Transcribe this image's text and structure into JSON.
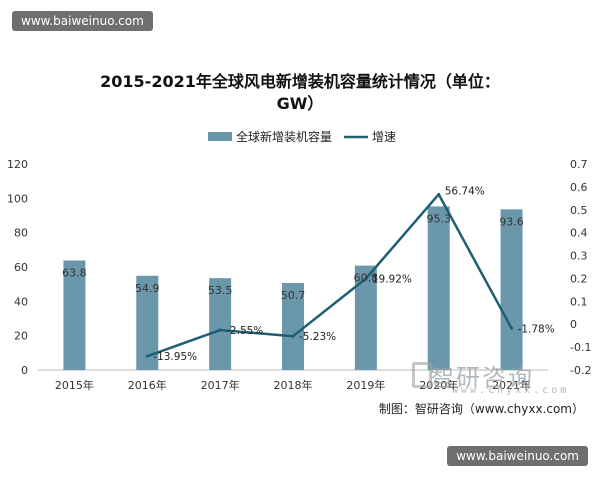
{
  "watermark_top": "www.baiweinuo.com",
  "watermark_bottom": "www.baiweinuo.com",
  "logo_watermark": {
    "text": "智研咨询",
    "sub": "www.chyxx.com"
  },
  "source": "制图：智研咨询（www.chyxx.com）",
  "chart_data": {
    "type": "bar",
    "title": "2015-2021年全球风电新增装机容量统计情况（单位：GW）",
    "categories": [
      "2015年",
      "2016年",
      "2017年",
      "2018年",
      "2019年",
      "2020年",
      "2021年"
    ],
    "series": [
      {
        "name": "全球新增装机容量",
        "type": "bar",
        "axis": "left",
        "values": [
          63.8,
          54.9,
          53.5,
          50.7,
          60.8,
          95.3,
          93.6
        ],
        "labels": [
          "63.8",
          "54.9",
          "53.5",
          "50.7",
          "60.8",
          "95.3",
          "93.6"
        ],
        "color": "#6b97ab"
      },
      {
        "name": "增速",
        "type": "line",
        "axis": "right",
        "values": [
          null,
          -0.1395,
          -0.0255,
          -0.0523,
          0.1992,
          0.5674,
          -0.0178
        ],
        "labels": [
          "",
          "-13.95%",
          "-2.55%",
          "-5.23%",
          "19.92%",
          "56.74%",
          "-1.78%"
        ],
        "color": "#1f5f73"
      }
    ],
    "y_left": {
      "min": 0,
      "max": 120,
      "ticks": [
        "0",
        "20",
        "40",
        "60",
        "80",
        "100",
        "120"
      ]
    },
    "y_right": {
      "min": -0.2,
      "max": 0.7,
      "ticks": [
        "-0.2",
        "-0.1",
        "0",
        "0.1",
        "0.2",
        "0.3",
        "0.4",
        "0.5",
        "0.6",
        "0.7"
      ]
    },
    "legend_position": "top",
    "grid": false
  }
}
